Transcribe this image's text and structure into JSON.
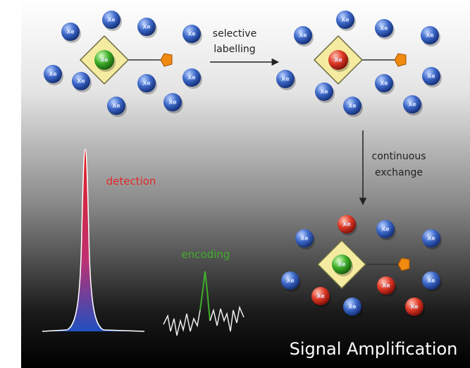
{
  "atom_label": "Xe",
  "arrows": {
    "labelling": [
      "selective",
      "labelling"
    ],
    "exchange": [
      "continuous",
      "exchange"
    ]
  },
  "spectrum": {
    "detection": "detection",
    "encoding": "encoding"
  },
  "caption": "Signal Amplification"
}
